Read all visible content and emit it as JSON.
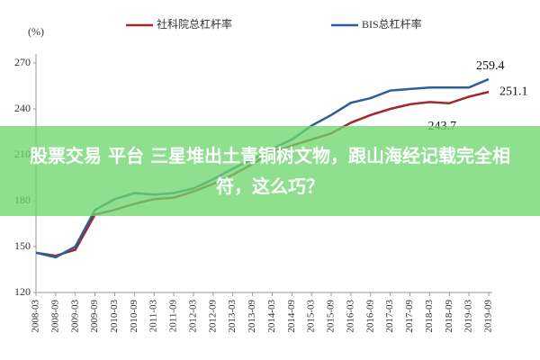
{
  "chart_data": {
    "type": "line",
    "y_label": "(%)",
    "categories": [
      "2008-03",
      "2008-09",
      "2009-03",
      "2009-09",
      "2010-03",
      "2010-09",
      "2011-03",
      "2011-09",
      "2012-03",
      "2012-09",
      "2013-03",
      "2013-09",
      "2014-03",
      "2014-09",
      "2015-03",
      "2015-09",
      "2016-03",
      "2016-09",
      "2017-03",
      "2017-09",
      "2018-03",
      "2018-09",
      "2019-03",
      "2019-09"
    ],
    "series": [
      {
        "name": "社科院总杠杆率",
        "color": "#a3262a",
        "values": [
          146,
          144,
          148,
          171,
          174,
          178,
          181,
          182,
          186,
          191,
          197,
          204,
          212,
          216,
          220,
          224,
          231,
          236,
          240,
          243,
          244.5,
          243.7,
          248,
          251.1
        ]
      },
      {
        "name": "BIS总杠杆率",
        "color": "#2b5f98",
        "values": [
          146,
          143,
          150,
          174,
          181,
          185,
          184,
          185,
          188,
          194,
          201,
          207,
          214,
          220,
          229,
          236,
          244,
          247,
          252,
          253,
          254,
          254,
          254,
          259.4
        ]
      }
    ],
    "ylim": [
      120,
      270
    ],
    "yticks": [
      120,
      150,
      180,
      210,
      240,
      270
    ],
    "grid": false
  },
  "headline": "股票交易 平台 三星堆出土青铜树文物，跟山海经记载完全相符，这么巧？"
}
